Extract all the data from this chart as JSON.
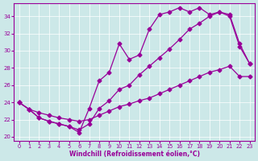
{
  "xlabel": "Windchill (Refroidissement éolien,°C)",
  "background_color": "#cce8e8",
  "line_color": "#990099",
  "xlim": [
    -0.5,
    23.5
  ],
  "ylim": [
    19.5,
    35.5
  ],
  "xticks": [
    0,
    1,
    2,
    3,
    4,
    5,
    6,
    7,
    8,
    9,
    10,
    11,
    12,
    13,
    14,
    15,
    16,
    17,
    18,
    19,
    20,
    21,
    22,
    23
  ],
  "yticks": [
    20,
    22,
    24,
    26,
    28,
    30,
    32,
    34
  ],
  "series1_x": [
    0,
    1,
    2,
    3,
    4,
    5,
    6,
    7,
    8,
    9,
    10,
    11,
    12,
    13,
    14,
    15,
    16,
    17,
    18,
    19,
    20,
    21,
    22,
    23
  ],
  "series1_y": [
    24.0,
    23.2,
    22.2,
    21.8,
    21.5,
    21.2,
    20.5,
    23.3,
    26.5,
    27.5,
    30.8,
    29.0,
    29.5,
    32.5,
    34.2,
    34.5,
    35.0,
    34.5,
    35.0,
    34.2,
    34.5,
    34.2,
    30.8,
    28.5
  ],
  "series2_x": [
    0,
    1,
    2,
    3,
    4,
    5,
    6,
    7,
    8,
    9,
    10,
    11,
    12,
    13,
    14,
    15,
    16,
    17,
    18,
    19,
    20,
    21,
    22,
    23
  ],
  "series2_y": [
    24.0,
    23.2,
    22.2,
    21.8,
    21.5,
    21.2,
    20.8,
    21.5,
    23.3,
    24.2,
    25.5,
    26.0,
    27.2,
    28.2,
    29.2,
    30.2,
    31.3,
    32.5,
    33.2,
    34.0,
    34.5,
    34.0,
    30.5,
    28.5
  ],
  "series3_x": [
    0,
    1,
    2,
    3,
    4,
    5,
    6,
    7,
    8,
    9,
    10,
    11,
    12,
    13,
    14,
    15,
    16,
    17,
    18,
    19,
    20,
    21,
    22,
    23
  ],
  "series3_y": [
    24.0,
    23.2,
    22.8,
    22.5,
    22.2,
    22.0,
    21.8,
    22.0,
    22.5,
    23.0,
    23.5,
    23.8,
    24.2,
    24.5,
    25.0,
    25.5,
    26.0,
    26.5,
    27.0,
    27.5,
    27.8,
    28.2,
    27.0,
    27.0
  ],
  "marker": "D",
  "markersize": 2.5,
  "linewidth": 0.9
}
